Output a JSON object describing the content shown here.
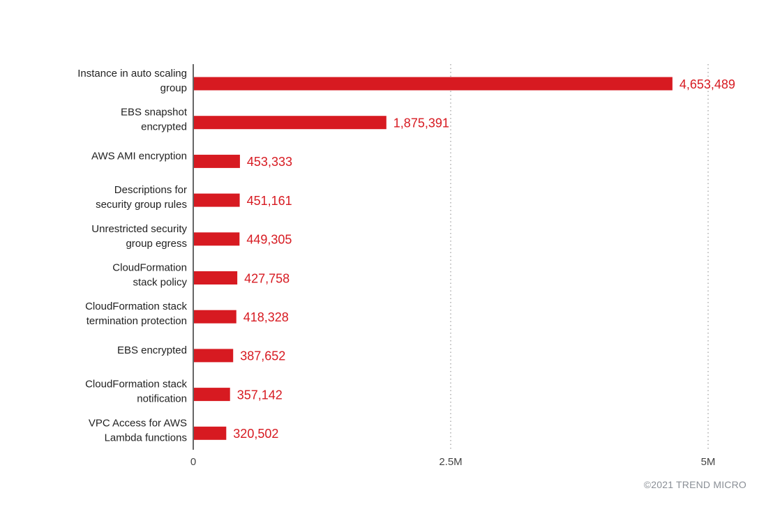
{
  "chart_data": {
    "type": "bar",
    "orientation": "horizontal",
    "categories": [
      [
        "Instance in auto scaling",
        "group"
      ],
      [
        "EBS snapshot",
        "encrypted"
      ],
      [
        "AWS AMI encryption"
      ],
      [
        "Descriptions for",
        "security group rules"
      ],
      [
        "Unrestricted security",
        "group egress"
      ],
      [
        "CloudFormation",
        "stack policy"
      ],
      [
        "CloudFormation stack",
        "termination protection"
      ],
      [
        "EBS encrypted"
      ],
      [
        "CloudFormation stack",
        "notification"
      ],
      [
        "VPC Access for AWS",
        "Lambda functions"
      ]
    ],
    "values": [
      4653489,
      1875391,
      453333,
      451161,
      449305,
      427758,
      418328,
      387652,
      357142,
      320502
    ],
    "value_labels": [
      "4,653,489",
      "1,875,391",
      "453,333",
      "451,161",
      "449,305",
      "427,758",
      "418,328",
      "387,652",
      "357,142",
      "320,502"
    ],
    "xlim": [
      0,
      5000000
    ],
    "xticks": [
      0,
      2500000,
      5000000
    ],
    "xtick_labels": [
      "0",
      "2.5M",
      "5M"
    ],
    "grid": "vertical dotted",
    "bar_color": "#d71a21",
    "label_color": "#d71a21"
  },
  "footer": {
    "copyright": "©2021 TREND MICRO"
  }
}
